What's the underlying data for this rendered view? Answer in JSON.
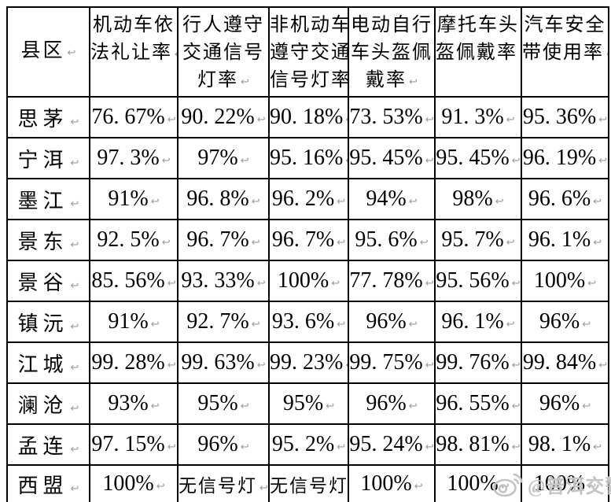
{
  "table": {
    "corner_label": "县区",
    "end_mark": "↩",
    "columns": [
      {
        "name": "机动车依法礼让率",
        "lines": [
          "机动车依",
          "法礼让率"
        ]
      },
      {
        "name": "行人遵守交通信号灯率",
        "lines": [
          "行人遵守",
          "交通信号",
          "灯率"
        ]
      },
      {
        "name": "非机动车遵守交通信号灯率",
        "lines": [
          "非机动车",
          "遵守交通",
          "信号灯率"
        ]
      },
      {
        "name": "电动自行车头盔佩戴率",
        "lines": [
          "电动自行",
          "车头盔佩",
          "戴率"
        ]
      },
      {
        "name": "摩托车头盔佩戴率",
        "lines": [
          "摩托车头",
          "盔佩戴率"
        ]
      },
      {
        "name": "汽车安全带使用率",
        "lines": [
          "汽车安全",
          "带使用率"
        ]
      }
    ],
    "rows": [
      {
        "county": "思茅",
        "values": [
          "76. 67%",
          "90. 22%",
          "90. 18%",
          "73. 53%",
          "91. 3%",
          "95. 36%"
        ]
      },
      {
        "county": "宁洱",
        "values": [
          "97. 3%",
          "97%",
          "95. 16%",
          "95. 45%",
          "95. 45%",
          "96. 19%"
        ]
      },
      {
        "county": "墨江",
        "values": [
          "91%",
          "96. 8%",
          "96. 2%",
          "94%",
          "98%",
          "96. 6%"
        ]
      },
      {
        "county": "景东",
        "values": [
          "92. 5%",
          "96. 7%",
          "96. 7%",
          "95. 6%",
          "95. 7%",
          "96. 1%"
        ]
      },
      {
        "county": "景谷",
        "values": [
          "85. 56%",
          "93. 33%",
          "100%",
          "77. 78%",
          "95. 56%",
          "100%"
        ]
      },
      {
        "county": "镇沅",
        "values": [
          "91%",
          "92. 7%",
          "93. 6%",
          "96%",
          "96. 1%",
          "96%"
        ]
      },
      {
        "county": "江城",
        "values": [
          "99. 28%",
          "99. 63%",
          "99. 23%",
          "99. 75%",
          "99. 76%",
          "99. 84%"
        ]
      },
      {
        "county": "澜沧",
        "values": [
          "93%",
          "95%",
          "95%",
          "96%",
          "96. 55%",
          "96%"
        ]
      },
      {
        "county": "孟连",
        "values": [
          "97. 15%",
          "96%",
          "95. 2%",
          "95. 24%",
          "98. 81%",
          "98. 1%"
        ]
      },
      {
        "county": "西盟",
        "values": [
          "100%",
          "无信号灯",
          "无信号灯",
          "100%",
          "100%",
          "100%"
        ]
      }
    ]
  },
  "watermark": {
    "handle": "@普洱交警",
    "icon": "weibo-icon",
    "color": "#c3c3c3"
  },
  "colors": {
    "background": "#ffffff",
    "border": "#000000",
    "text": "#000000"
  }
}
